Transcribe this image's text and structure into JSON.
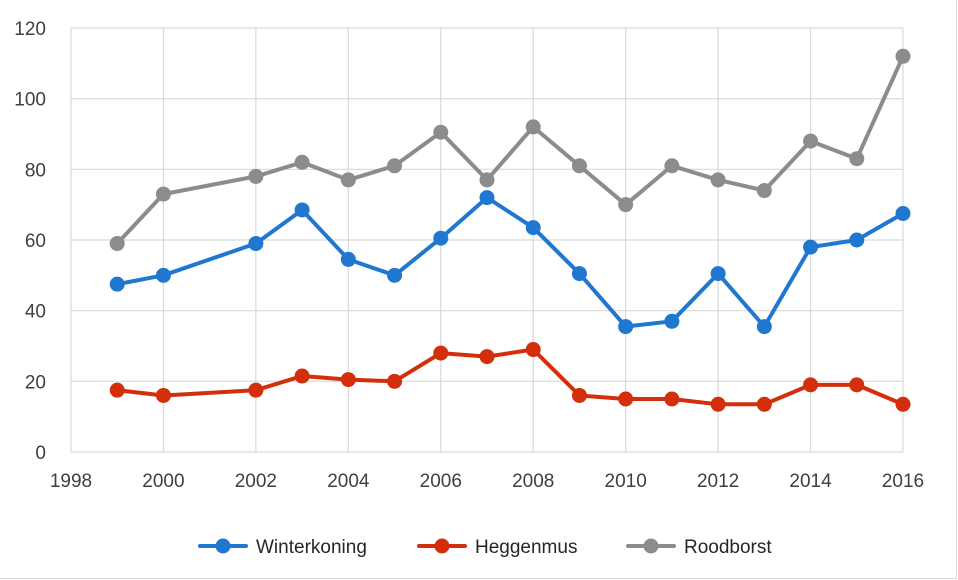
{
  "chart_data": {
    "type": "line",
    "title": "",
    "xlabel": "",
    "ylabel": "",
    "xlim": [
      1998,
      2016
    ],
    "ylim": [
      0,
      120
    ],
    "x_ticks": [
      "1998",
      "2000",
      "2002",
      "2004",
      "2006",
      "2008",
      "2010",
      "2012",
      "2014",
      "2016"
    ],
    "y_ticks": [
      "0",
      "20",
      "40",
      "60",
      "80",
      "100",
      "120"
    ],
    "grid": true,
    "legend_position": "bottom",
    "x": [
      1999,
      2000,
      2002,
      2003,
      2004,
      2005,
      2006,
      2007,
      2008,
      2009,
      2010,
      2011,
      2012,
      2013,
      2014,
      2015,
      2016
    ],
    "series": [
      {
        "name": "Winterkoning",
        "color": "#1f77d0",
        "values": [
          47.5,
          50,
          59,
          68.5,
          54.5,
          50,
          60.5,
          72,
          63.5,
          50.5,
          35.5,
          37,
          50.5,
          35.5,
          58,
          60,
          67.5
        ]
      },
      {
        "name": "Heggenmus",
        "color": "#d32f0c",
        "values": [
          17.5,
          16,
          17.5,
          21.5,
          20.5,
          20,
          28,
          27,
          29,
          16,
          15,
          15,
          13.5,
          13.5,
          19,
          19,
          13.5
        ]
      },
      {
        "name": "Roodborst",
        "color": "#8c8c8c",
        "values": [
          59,
          73,
          78,
          82,
          77,
          81,
          90.5,
          77,
          92,
          81,
          70,
          81,
          77,
          74,
          88,
          83,
          112
        ]
      }
    ]
  }
}
